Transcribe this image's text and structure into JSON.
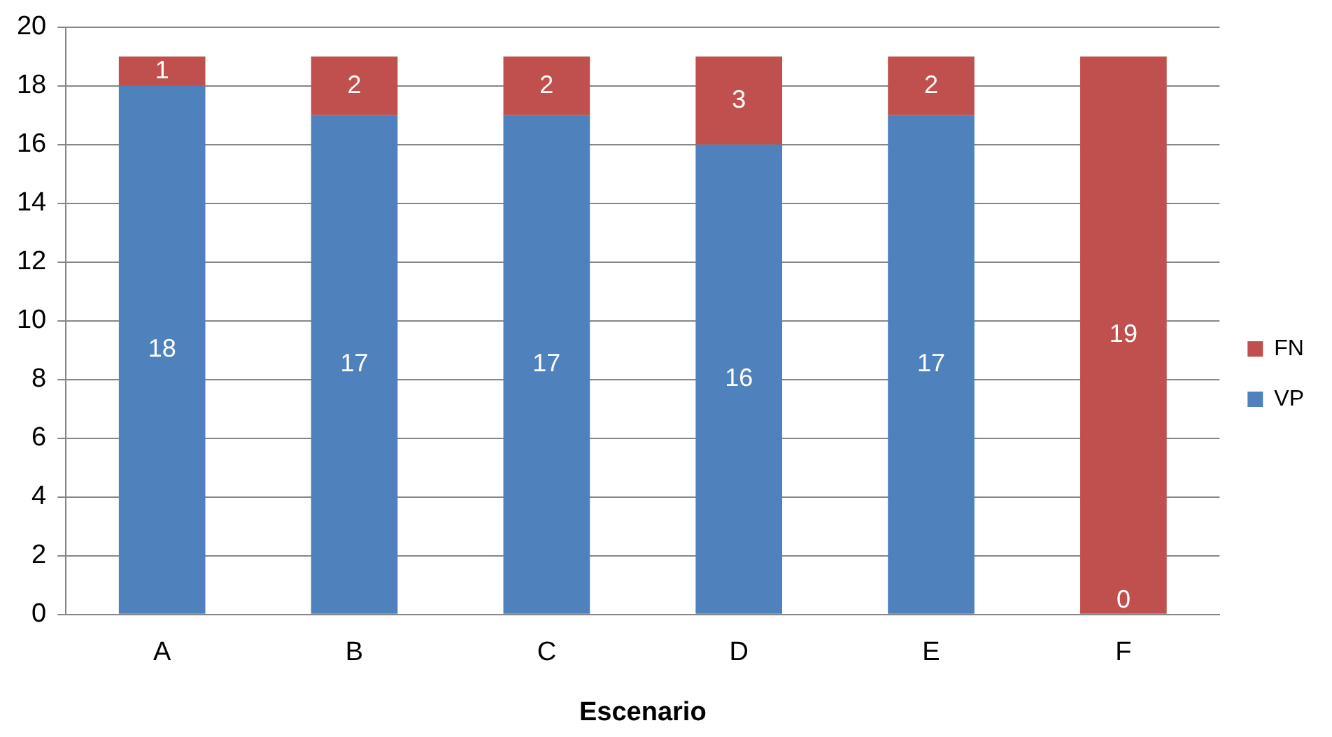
{
  "chart_data": {
    "type": "bar",
    "xlabel": "Escenario",
    "categories": [
      "A",
      "B",
      "C",
      "D",
      "E",
      "F"
    ],
    "series": [
      {
        "name": "VP",
        "color": "#4f81bd",
        "values": [
          18,
          17,
          17,
          16,
          17,
          0
        ],
        "value_labels": [
          "18",
          "17",
          "17",
          "16",
          "17",
          null
        ]
      },
      {
        "name": "FN",
        "color": "#c0504d",
        "values": [
          1,
          2,
          2,
          3,
          2,
          19
        ],
        "value_labels": [
          "1",
          "2",
          "2",
          "3",
          "2",
          "19"
        ]
      }
    ],
    "annotations": [
      {
        "text": "0",
        "x": "F",
        "y": 0
      }
    ],
    "stacked": true,
    "ylim": [
      0,
      20
    ],
    "yticks": [
      0,
      2,
      4,
      6,
      8,
      10,
      12,
      14,
      16,
      18,
      20
    ],
    "grid": "y",
    "legend": "right"
  }
}
